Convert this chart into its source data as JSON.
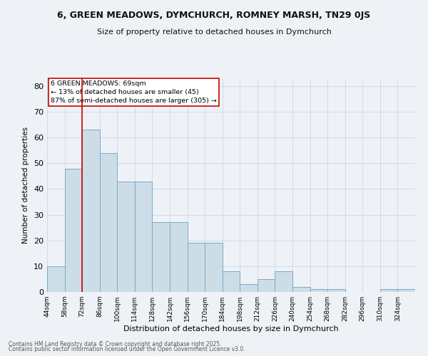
{
  "title": "6, GREEN MEADOWS, DYMCHURCH, ROMNEY MARSH, TN29 0JS",
  "subtitle": "Size of property relative to detached houses in Dymchurch",
  "xlabel": "Distribution of detached houses by size in Dymchurch",
  "ylabel": "Number of detached properties",
  "categories": [
    "44sqm",
    "58sqm",
    "72sqm",
    "86sqm",
    "100sqm",
    "114sqm",
    "128sqm",
    "142sqm",
    "156sqm",
    "170sqm",
    "184sqm",
    "198sqm",
    "212sqm",
    "226sqm",
    "240sqm",
    "254sqm",
    "268sqm",
    "282sqm",
    "296sqm",
    "310sqm",
    "324sqm"
  ],
  "bar_values": [
    10,
    48,
    63,
    54,
    43,
    43,
    27,
    27,
    19,
    19,
    8,
    3,
    5,
    8,
    2,
    1,
    1,
    0,
    0,
    1,
    1
  ],
  "bar_color": "#ccdde8",
  "bar_edge_color": "#7aaac8",
  "vline_color": "#cc0000",
  "vline_x": 2.0,
  "annotation_title": "6 GREEN MEADOWS: 69sqm",
  "annotation_line1": "← 13% of detached houses are smaller (45)",
  "annotation_line2": "87% of semi-detached houses are larger (305) →",
  "ylim": [
    0,
    83
  ],
  "yticks": [
    0,
    10,
    20,
    30,
    40,
    50,
    60,
    70,
    80
  ],
  "footer1": "Contains HM Land Registry data © Crown copyright and database right 2025.",
  "footer2": "Contains public sector information licensed under the Open Government Licence v3.0.",
  "bg_color": "#eef2f7",
  "plot_bg_color": "#eef2f7",
  "grid_color": "#c8cfe0"
}
